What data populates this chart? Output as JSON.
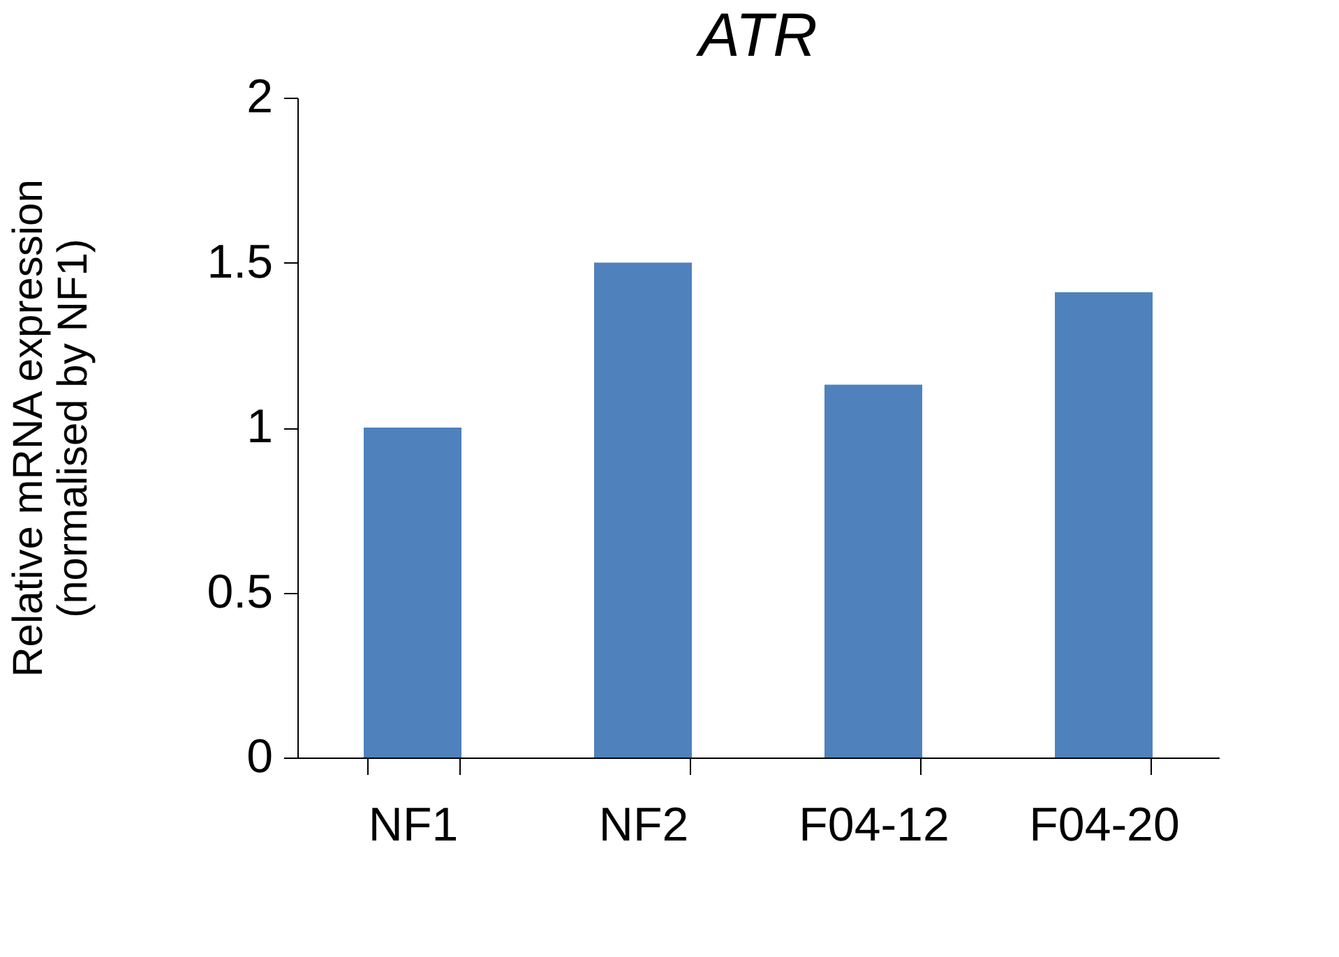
{
  "chart_data": {
    "type": "bar",
    "title": "ATR",
    "ylabel": "Relative mRNA expression\n(normalised by NF1)",
    "categories": [
      "NF1",
      "NF2",
      "F04-12",
      "F04-20"
    ],
    "values": [
      1.0,
      1.5,
      1.13,
      1.41
    ],
    "color": "#4f81bd",
    "ylim": [
      0,
      2
    ],
    "yticks": [
      0,
      0.5,
      1,
      1.5,
      2
    ],
    "grid": false
  }
}
